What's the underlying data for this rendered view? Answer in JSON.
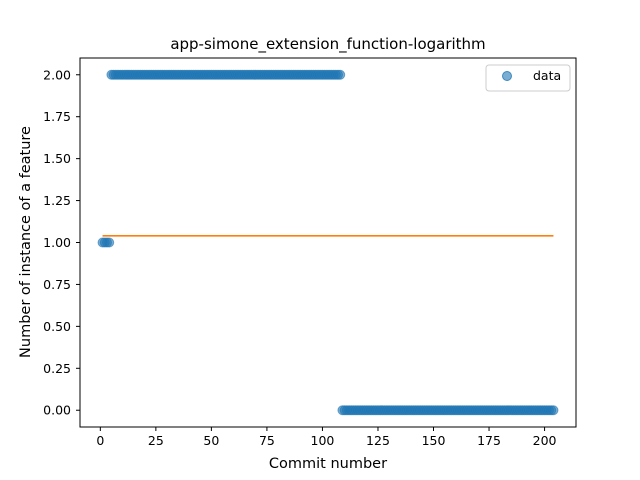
{
  "chart_data": {
    "type": "scatter",
    "title": "app-simone_extension_function-logarithm",
    "xlabel": "Commit number",
    "ylabel": "Number of instance of a feature",
    "xlim": [
      -9.15,
      214.15
    ],
    "ylim": [
      -0.1,
      2.1
    ],
    "xticks": [
      0,
      25,
      50,
      75,
      100,
      125,
      150,
      175,
      200
    ],
    "yticks": [
      0.0,
      0.25,
      0.5,
      0.75,
      1.0,
      1.25,
      1.5,
      1.75,
      2.0
    ],
    "ytick_labels": [
      "0.00",
      "0.25",
      "0.50",
      "0.75",
      "1.00",
      "1.25",
      "1.50",
      "1.75",
      "2.00"
    ],
    "grid": false,
    "legend_position": "top-right",
    "series": [
      {
        "name": "data",
        "kind": "scatter",
        "color": "#1f77b4",
        "segments": [
          {
            "x_start": 1,
            "x_end": 4,
            "y": 1
          },
          {
            "x_start": 5,
            "x_end": 108,
            "y": 2
          },
          {
            "x_start": 109,
            "x_end": 204,
            "y": 0
          }
        ]
      },
      {
        "name": "",
        "kind": "line",
        "color": "#ff7f0e",
        "x": [
          1,
          204
        ],
        "y": [
          1.04,
          1.04
        ]
      }
    ]
  }
}
